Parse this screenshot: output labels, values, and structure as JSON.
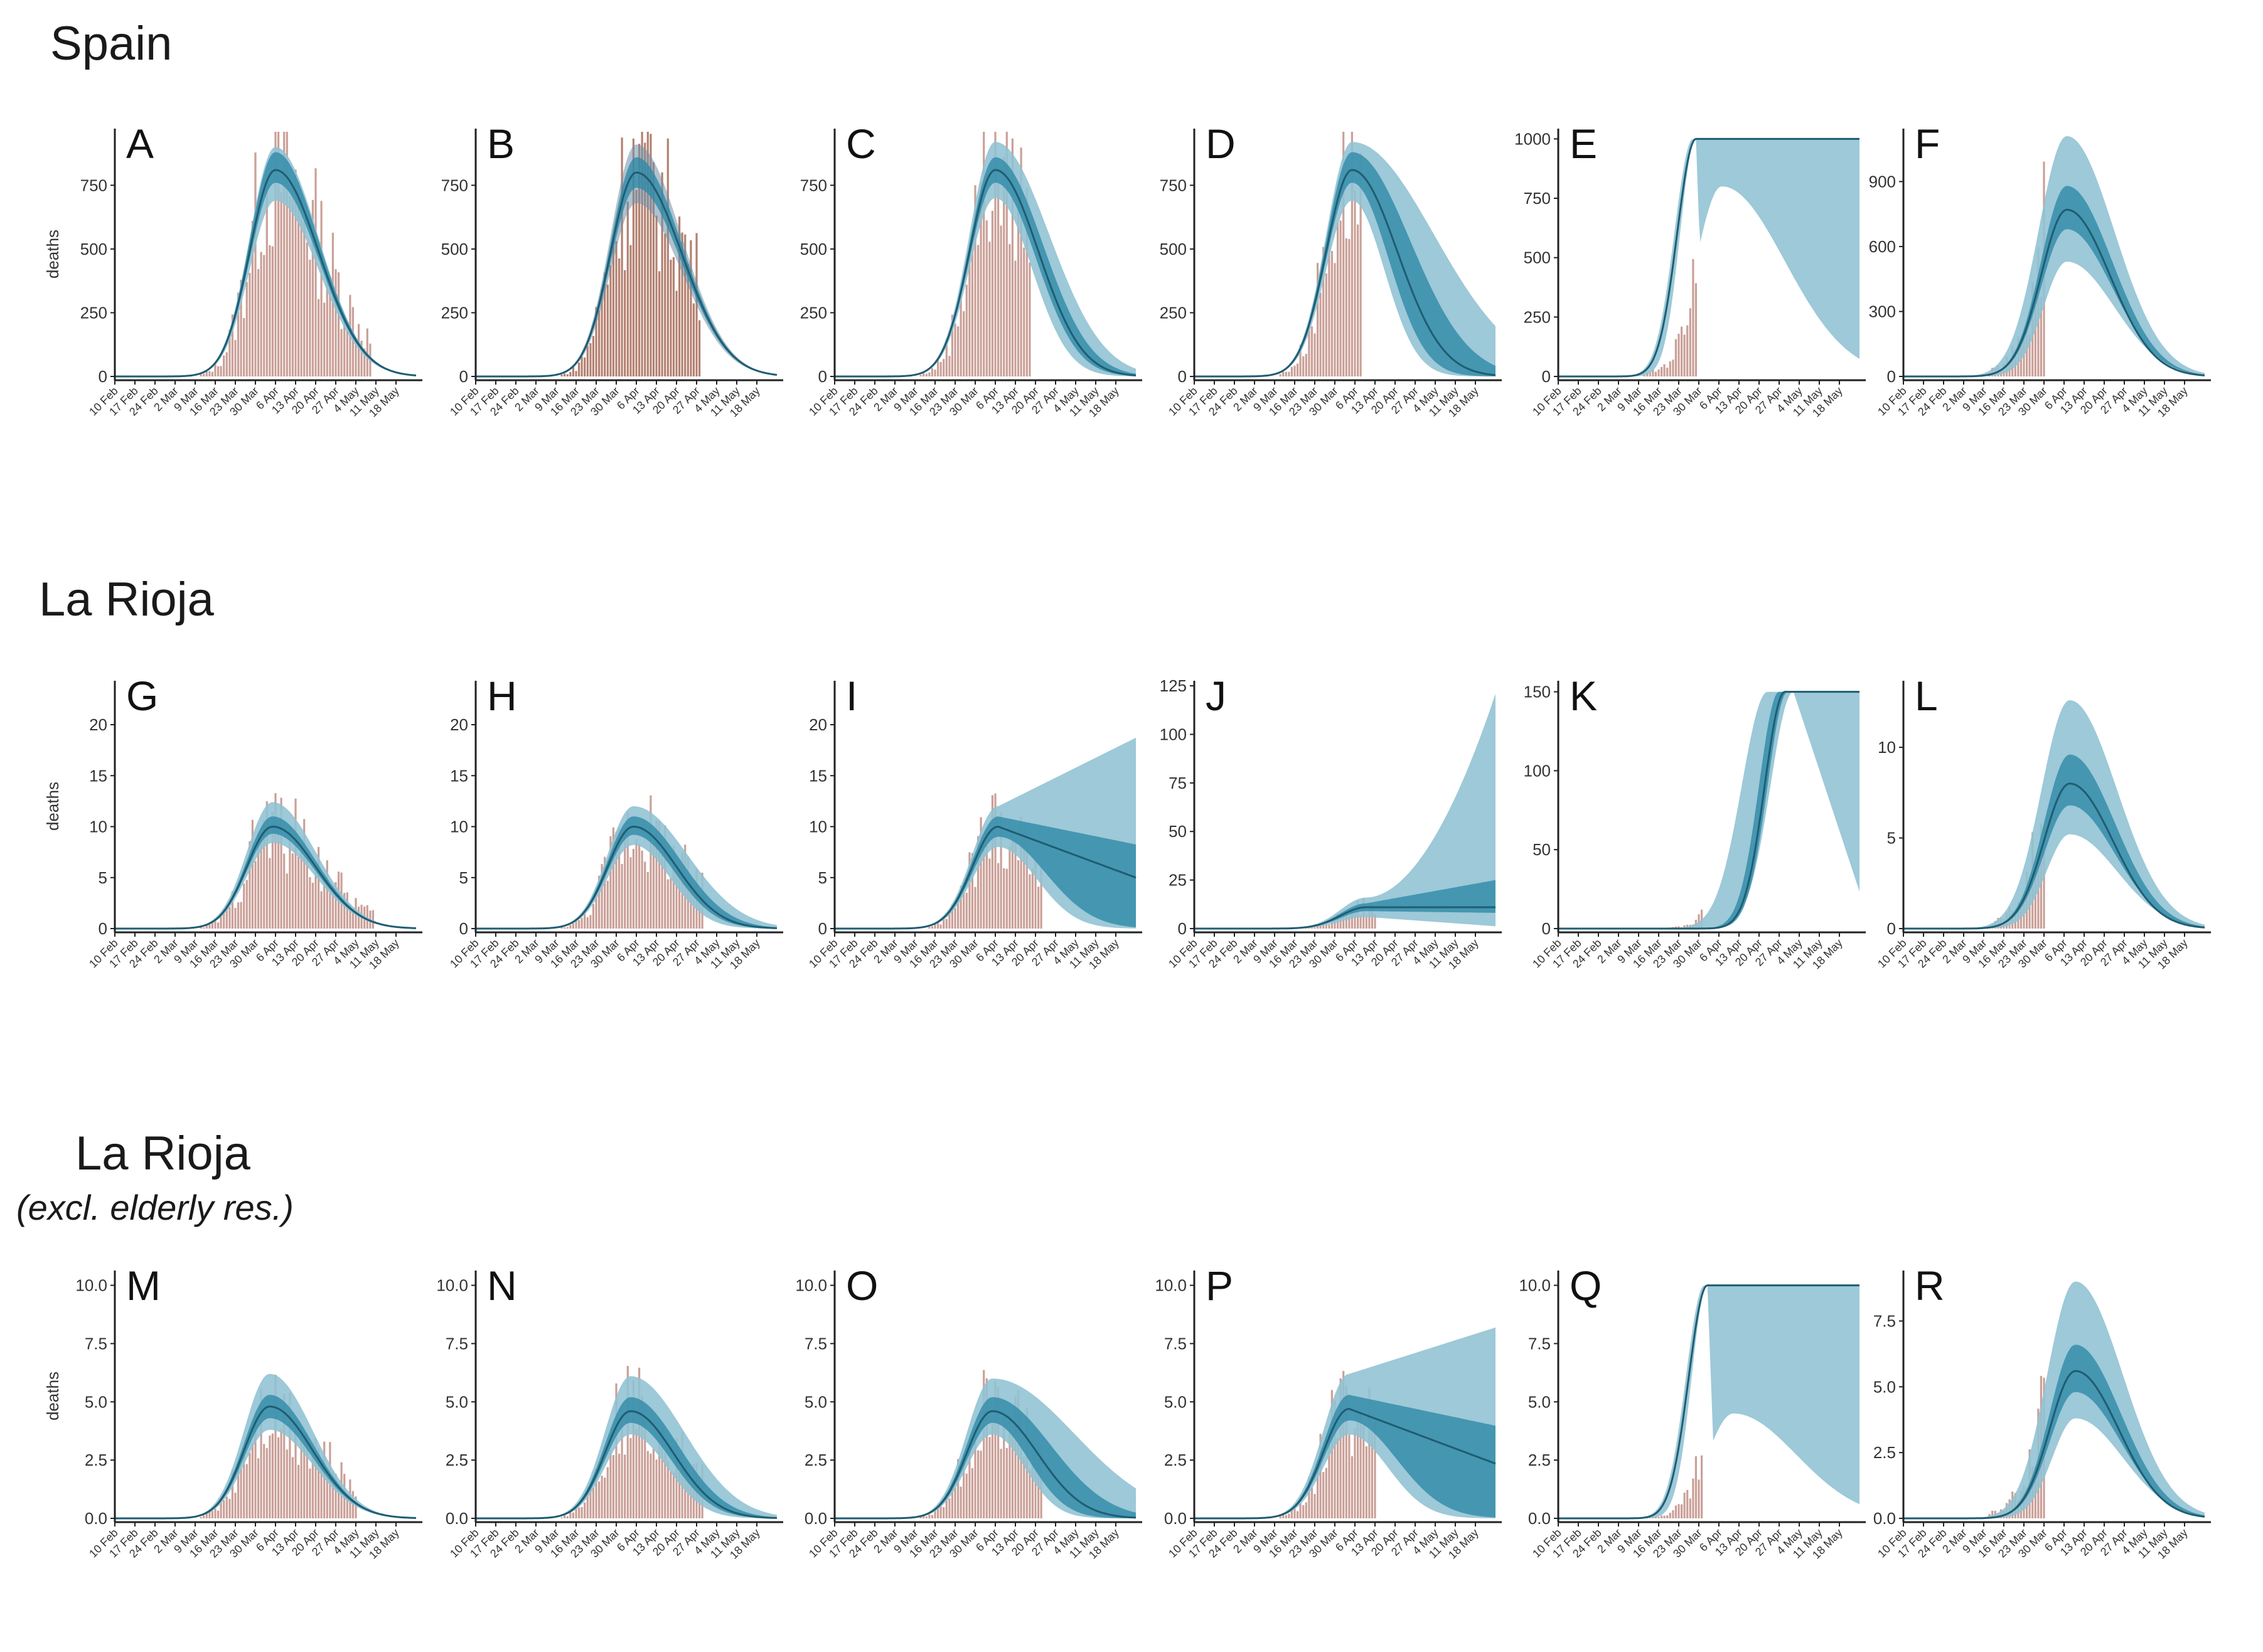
{
  "sections": [
    {
      "title": "Spain",
      "subtitle": ""
    },
    {
      "title": "La Rioja",
      "subtitle": ""
    },
    {
      "title": "La Rioja",
      "subtitle": "(excl. elderly res.)"
    }
  ],
  "colors": {
    "band_outer": "#8fc1d3",
    "band_inner": "#2f8aa8",
    "line": "#1f5d72",
    "bar": "#c79b92",
    "bar_overlap": "#b07a68",
    "band_overlap": "#6f8fa7"
  },
  "chart_data": [
    {
      "panel": "A",
      "section": 0,
      "col": 0,
      "type": "bar+line",
      "ylabel": "deaths",
      "yticks": [
        0,
        250,
        500,
        750
      ],
      "ylim": [
        0,
        960
      ],
      "peak": {
        "mid": 810,
        "inner": [
          760,
          880
        ],
        "outer": [
          690,
          900
        ]
      },
      "peakDay": 56,
      "shape": "fit",
      "obsEnd": 89,
      "barScale": 1.0,
      "bandScaleMode": "normal",
      "spread": 1.0,
      "sat": 0,
      "satStart": 0
    },
    {
      "panel": "B",
      "section": 0,
      "col": 1,
      "type": "bar+line",
      "ylabel": "",
      "yticks": [
        0,
        250,
        500,
        750
      ],
      "ylim": [
        0,
        960
      ],
      "peak": {
        "mid": 800,
        "inner": [
          740,
          860
        ],
        "outer": [
          680,
          910
        ]
      },
      "peakDay": 56,
      "shape": "fit",
      "obsEnd": 78,
      "barScale": 1.0,
      "bandScaleMode": "overlap",
      "spread": 1.05,
      "sat": 0,
      "satStart": 0
    },
    {
      "panel": "C",
      "section": 0,
      "col": 2,
      "type": "bar+line",
      "ylabel": "",
      "yticks": [
        0,
        250,
        500,
        750
      ],
      "ylim": [
        0,
        960
      ],
      "peak": {
        "mid": 810,
        "inner": [
          760,
          860
        ],
        "outer": [
          700,
          920
        ]
      },
      "peakDay": 56,
      "shape": "widen",
      "obsEnd": 68,
      "barScale": 1.0,
      "bandScaleMode": "normal",
      "spread": 1.0,
      "sat": 0,
      "satStart": 0
    },
    {
      "panel": "D",
      "section": 0,
      "col": 3,
      "type": "bar+line",
      "ylabel": "",
      "yticks": [
        0,
        250,
        500,
        750
      ],
      "ylim": [
        0,
        960
      ],
      "peak": {
        "mid": 810,
        "inner": [
          760,
          880
        ],
        "outer": [
          690,
          920
        ]
      },
      "peakDay": 55,
      "shape": "widen-more",
      "obsEnd": 58,
      "barScale": 1.0,
      "bandScaleMode": "normal",
      "spread": 1.0,
      "sat": 0,
      "satStart": 0
    },
    {
      "panel": "E",
      "section": 0,
      "col": 4,
      "type": "bar+line",
      "ylabel": "",
      "yticks": [
        0,
        250,
        500,
        750,
        1000
      ],
      "ylim": [
        0,
        1030
      ],
      "peak": {
        "mid": 1000,
        "inner": [
          1000,
          1000
        ],
        "outer": [
          800,
          1000
        ]
      },
      "peakDay": 48,
      "shape": "saturate",
      "obsEnd": 48,
      "barScale": 0.6,
      "bandScaleMode": "normal",
      "spread": 1.0,
      "sat": 1000,
      "satStart": 48
    },
    {
      "panel": "F",
      "section": 0,
      "col": 5,
      "type": "bar+line",
      "ylabel": "",
      "yticks": [
        0,
        300,
        600,
        900
      ],
      "ylim": [
        0,
        1130
      ],
      "peak": {
        "mid": 770,
        "inner": [
          680,
          880
        ],
        "outer": [
          530,
          1110
        ]
      },
      "peakDay": 57,
      "shape": "forecast",
      "obsEnd": 49,
      "barScale": 1.0,
      "bandScaleMode": "normal",
      "spread": 1.0,
      "sat": 0,
      "satStart": 0
    },
    {
      "panel": "G",
      "section": 1,
      "col": 0,
      "type": "bar+line",
      "ylabel": "deaths",
      "yticks": [
        0,
        5,
        10,
        15,
        20
      ],
      "ylim": [
        0,
        24
      ],
      "peak": {
        "mid": 10,
        "inner": [
          9.3,
          11
        ],
        "outer": [
          8.4,
          12.4
        ]
      },
      "peakDay": 55,
      "shape": "fit",
      "obsEnd": 90,
      "barScale": 1.0,
      "bandScaleMode": "normal",
      "spread": 1.0,
      "sat": 0,
      "satStart": 0
    },
    {
      "panel": "H",
      "section": 1,
      "col": 1,
      "type": "bar+line",
      "ylabel": "",
      "yticks": [
        0,
        5,
        10,
        15,
        20
      ],
      "ylim": [
        0,
        24
      ],
      "peak": {
        "mid": 10,
        "inner": [
          9.2,
          11
        ],
        "outer": [
          8.2,
          12
        ]
      },
      "peakDay": 55,
      "shape": "widen",
      "obsEnd": 79,
      "barScale": 1.0,
      "bandScaleMode": "normal",
      "spread": 1.0,
      "sat": 0,
      "satStart": 0
    },
    {
      "panel": "I",
      "section": 1,
      "col": 2,
      "type": "bar+line",
      "ylabel": "",
      "yticks": [
        0,
        5,
        10,
        15,
        20
      ],
      "ylim": [
        0,
        24
      ],
      "peak": {
        "mid": 10,
        "inner": [
          9,
          11
        ],
        "outer": [
          8,
          12
        ]
      },
      "peakDay": 57,
      "shape": "open-up",
      "obsEnd": 72,
      "barScale": 1.0,
      "bandScaleMode": "normal",
      "spread": 1.0,
      "sat": 0,
      "satStart": 0
    },
    {
      "panel": "J",
      "section": 1,
      "col": 3,
      "type": "bar+line",
      "ylabel": "",
      "yticks": [
        0,
        25,
        50,
        75,
        100,
        125
      ],
      "ylim": [
        0,
        126
      ],
      "peak": {
        "mid": 11,
        "inner": [
          9,
          13
        ],
        "outer": [
          6,
          16
        ]
      },
      "peakDay": 60,
      "shape": "explode",
      "obsEnd": 63,
      "barScale": 1.0,
      "bandScaleMode": "normal",
      "spread": 1.0,
      "sat": 0,
      "satStart": 0
    },
    {
      "panel": "K",
      "section": 1,
      "col": 4,
      "type": "bar+line",
      "ylabel": "",
      "yticks": [
        0,
        50,
        100,
        150
      ],
      "ylim": [
        0,
        155
      ],
      "peak": {
        "mid": 150,
        "inner": [
          150,
          150
        ],
        "outer": [
          150,
          150
        ]
      },
      "peakDay": 78,
      "shape": "saturate-late",
      "obsEnd": 50,
      "barScale": 1.0,
      "bandScaleMode": "normal",
      "spread": 1.0,
      "sat": 150,
      "satStart": 78
    },
    {
      "panel": "L",
      "section": 1,
      "col": 5,
      "type": "bar+line",
      "ylabel": "",
      "yticks": [
        0,
        5,
        10
      ],
      "ylim": [
        0,
        13.5
      ],
      "peak": {
        "mid": 8,
        "inner": [
          6.8,
          9.6
        ],
        "outer": [
          5.2,
          12.6
        ]
      },
      "peakDay": 58,
      "shape": "forecast",
      "obsEnd": 49,
      "barScale": 1.0,
      "bandScaleMode": "normal",
      "spread": 1.0,
      "sat": 0,
      "satStart": 0
    },
    {
      "panel": "M",
      "section": 2,
      "col": 0,
      "type": "bar+line",
      "ylabel": "deaths",
      "yticks": [
        "0.0",
        "2.5",
        "5.0",
        "7.5",
        "10.0"
      ],
      "ylim": [
        0,
        10.5
      ],
      "peak": {
        "mid": 4.8,
        "inner": [
          4.3,
          5.3
        ],
        "outer": [
          3.8,
          6.2
        ]
      },
      "peakDay": 54,
      "shape": "fit",
      "obsEnd": 84,
      "barScale": 1.0,
      "bandScaleMode": "normal",
      "spread": 1.0,
      "sat": 0,
      "satStart": 0
    },
    {
      "panel": "N",
      "section": 2,
      "col": 1,
      "type": "bar+line",
      "ylabel": "",
      "yticks": [
        "0.0",
        "2.5",
        "5.0",
        "7.5",
        "10.0"
      ],
      "ylim": [
        0,
        10.5
      ],
      "peak": {
        "mid": 4.6,
        "inner": [
          4.1,
          5.2
        ],
        "outer": [
          3.6,
          6.1
        ]
      },
      "peakDay": 54,
      "shape": "widen",
      "obsEnd": 79,
      "barScale": 1.0,
      "bandScaleMode": "normal",
      "spread": 1.0,
      "sat": 0,
      "satStart": 0
    },
    {
      "panel": "O",
      "section": 2,
      "col": 2,
      "type": "bar+line",
      "ylabel": "",
      "yticks": [
        "0.0",
        "2.5",
        "5.0",
        "7.5",
        "10.0"
      ],
      "ylim": [
        0,
        10.5
      ],
      "peak": {
        "mid": 4.6,
        "inner": [
          4.1,
          5.2
        ],
        "outer": [
          3.6,
          6.0
        ]
      },
      "peakDay": 55,
      "shape": "widen-more",
      "obsEnd": 72,
      "barScale": 1.0,
      "bandScaleMode": "normal",
      "spread": 1.0,
      "sat": 0,
      "satStart": 0
    },
    {
      "panel": "P",
      "section": 2,
      "col": 3,
      "type": "bar+line",
      "ylabel": "",
      "yticks": [
        "0.0",
        "2.5",
        "5.0",
        "7.5",
        "10.0"
      ],
      "ylim": [
        0,
        10.5
      ],
      "peak": {
        "mid": 4.7,
        "inner": [
          4.2,
          5.3
        ],
        "outer": [
          3.6,
          6.2
        ]
      },
      "peakDay": 54,
      "shape": "open-up",
      "obsEnd": 63,
      "barScale": 1.0,
      "bandScaleMode": "normal",
      "spread": 1.0,
      "sat": 0,
      "satStart": 0
    },
    {
      "panel": "Q",
      "section": 2,
      "col": 4,
      "type": "bar+line",
      "ylabel": "",
      "yticks": [
        "0.0",
        "2.5",
        "5.0",
        "7.5",
        "10.0"
      ],
      "ylim": [
        0,
        10.5
      ],
      "peak": {
        "mid": 10,
        "inner": [
          10,
          10
        ],
        "outer": [
          4.5,
          10
        ]
      },
      "peakDay": 52,
      "shape": "saturate",
      "obsEnd": 50,
      "barScale": 0.7,
      "bandScaleMode": "normal",
      "spread": 1.0,
      "sat": 10,
      "satStart": 52
    },
    {
      "panel": "R",
      "section": 2,
      "col": 5,
      "type": "bar+line",
      "ylabel": "",
      "yticks": [
        "0.0",
        "2.5",
        "5.0",
        "7.5"
      ],
      "ylim": [
        0,
        9.3
      ],
      "peak": {
        "mid": 5.6,
        "inner": [
          4.8,
          6.6
        ],
        "outer": [
          3.8,
          9.0
        ]
      },
      "peakDay": 60,
      "shape": "forecast",
      "obsEnd": 49,
      "barScale": 1.0,
      "bandScaleMode": "normal",
      "spread": 1.0,
      "sat": 0,
      "satStart": 0
    }
  ],
  "x_ticks": [
    "10 Feb",
    "17 Feb",
    "24 Feb",
    "2 Mar",
    "9 Mar",
    "16 Mar",
    "23 Mar",
    "30 Mar",
    "6 Apr",
    "13 Apr",
    "20 Apr",
    "27 Apr",
    "4 May",
    "11 May",
    "18 May"
  ],
  "x_range_days": [
    0,
    105
  ]
}
